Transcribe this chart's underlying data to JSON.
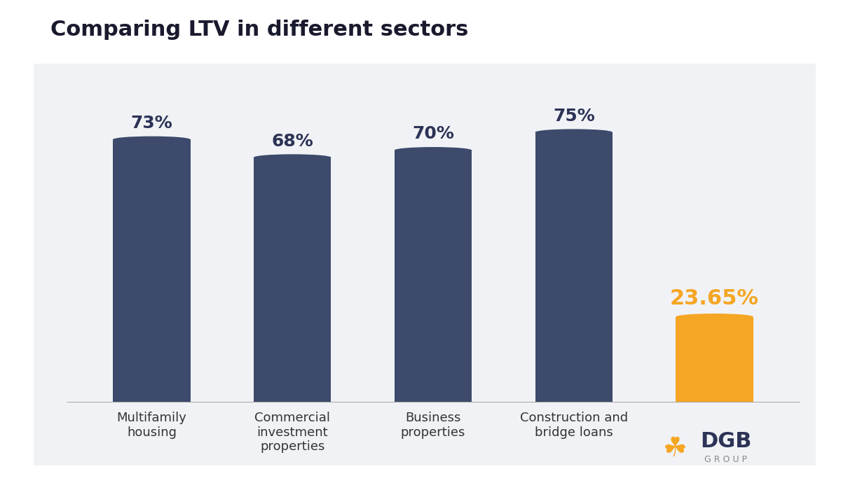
{
  "title": "Comparing LTV in different sectors",
  "categories": [
    "Multifamily\nhousing",
    "Commercial\ninvestment\nproperties",
    "Business\nproperties",
    "Construction and\nbridge loans",
    "DGB\nGROUP"
  ],
  "values": [
    73,
    68,
    70,
    75,
    23.65
  ],
  "bar_colors": [
    "#3d4a6b",
    "#3d4a6b",
    "#3d4a6b",
    "#3d4a6b",
    "#f5a623"
  ],
  "label_texts": [
    "73%",
    "68%",
    "70%",
    "75%",
    "23.65%"
  ],
  "label_colors": [
    "#2c3356",
    "#2c3356",
    "#2c3356",
    "#2c3356",
    "#f5a623"
  ],
  "title_fontsize": 22,
  "label_fontsize": 18,
  "highlight_label_fontsize": 22,
  "tick_fontsize": 13,
  "background_color": "#f0f2f5",
  "outer_bg": "#ffffff",
  "ylim": [
    0,
    90
  ],
  "bar_width": 0.55
}
